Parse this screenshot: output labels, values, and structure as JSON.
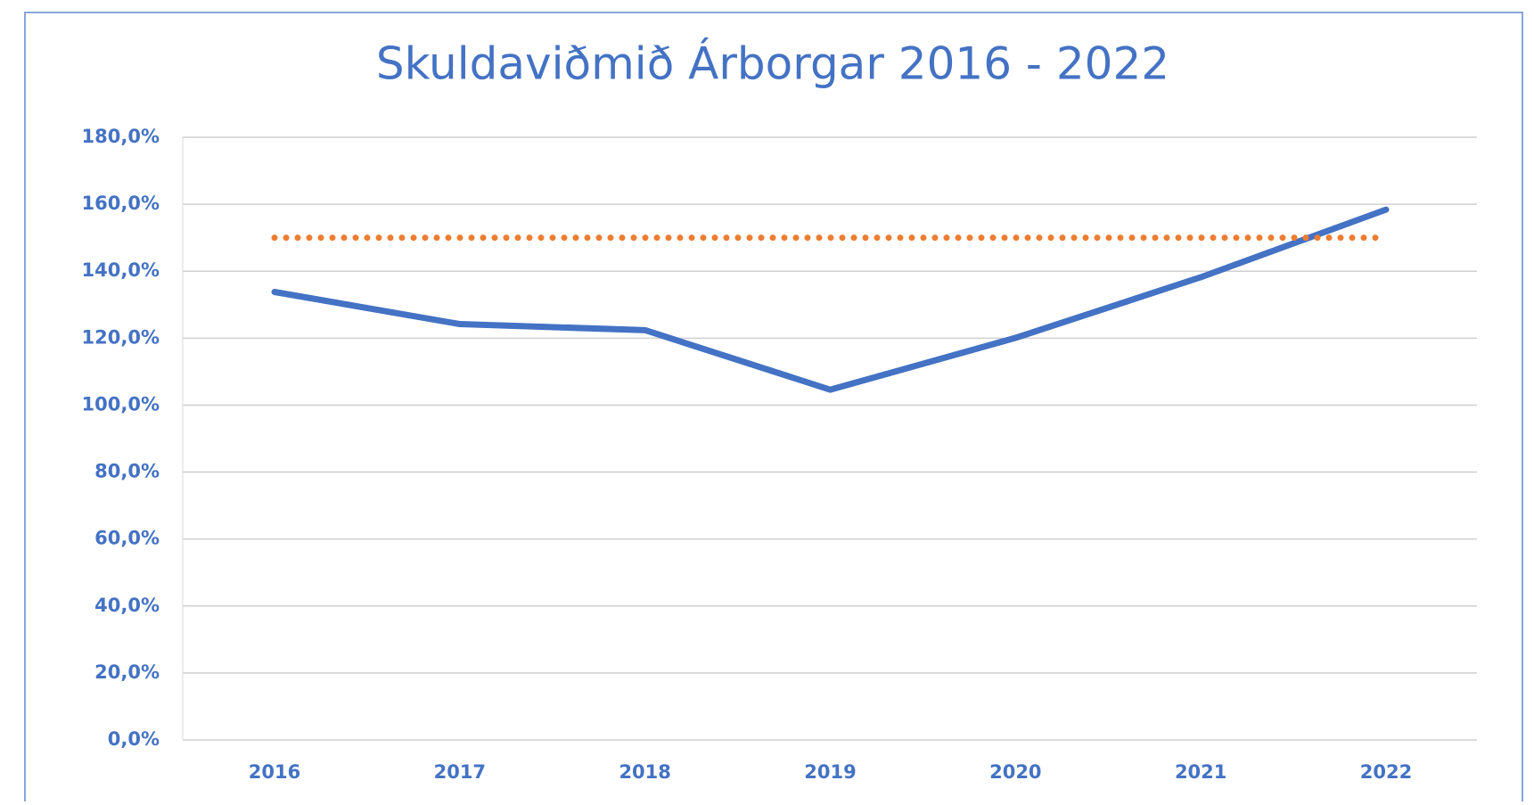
{
  "chart_data": {
    "type": "line",
    "title": "Skuldaviðmið Árborgar 2016 - 2022",
    "categories": [
      "2016",
      "2017",
      "2018",
      "2019",
      "2020",
      "2021",
      "2022"
    ],
    "series": [
      {
        "color": "#4472c4",
        "style": "solid",
        "values": [
          133.8,
          124.2,
          122.4,
          104.6,
          120.1,
          138.2,
          158.4
        ]
      },
      {
        "color": "#ed7d31",
        "style": "dotted",
        "values": [
          150,
          150,
          150,
          150,
          150,
          150,
          150
        ]
      }
    ],
    "ylim": [
      0,
      180
    ],
    "yticks": [
      {
        "value": 0,
        "label": "0,0%"
      },
      {
        "value": 20,
        "label": "20,0%"
      },
      {
        "value": 40,
        "label": "40,0%"
      },
      {
        "value": 60,
        "label": "60,0%"
      },
      {
        "value": 80,
        "label": "80,0%"
      },
      {
        "value": 100,
        "label": "100,0%"
      },
      {
        "value": 120,
        "label": "120,0%"
      },
      {
        "value": 140,
        "label": "140,0%"
      },
      {
        "value": 160,
        "label": "160,0%"
      },
      {
        "value": 180,
        "label": "180,0%"
      }
    ],
    "grid": true
  }
}
